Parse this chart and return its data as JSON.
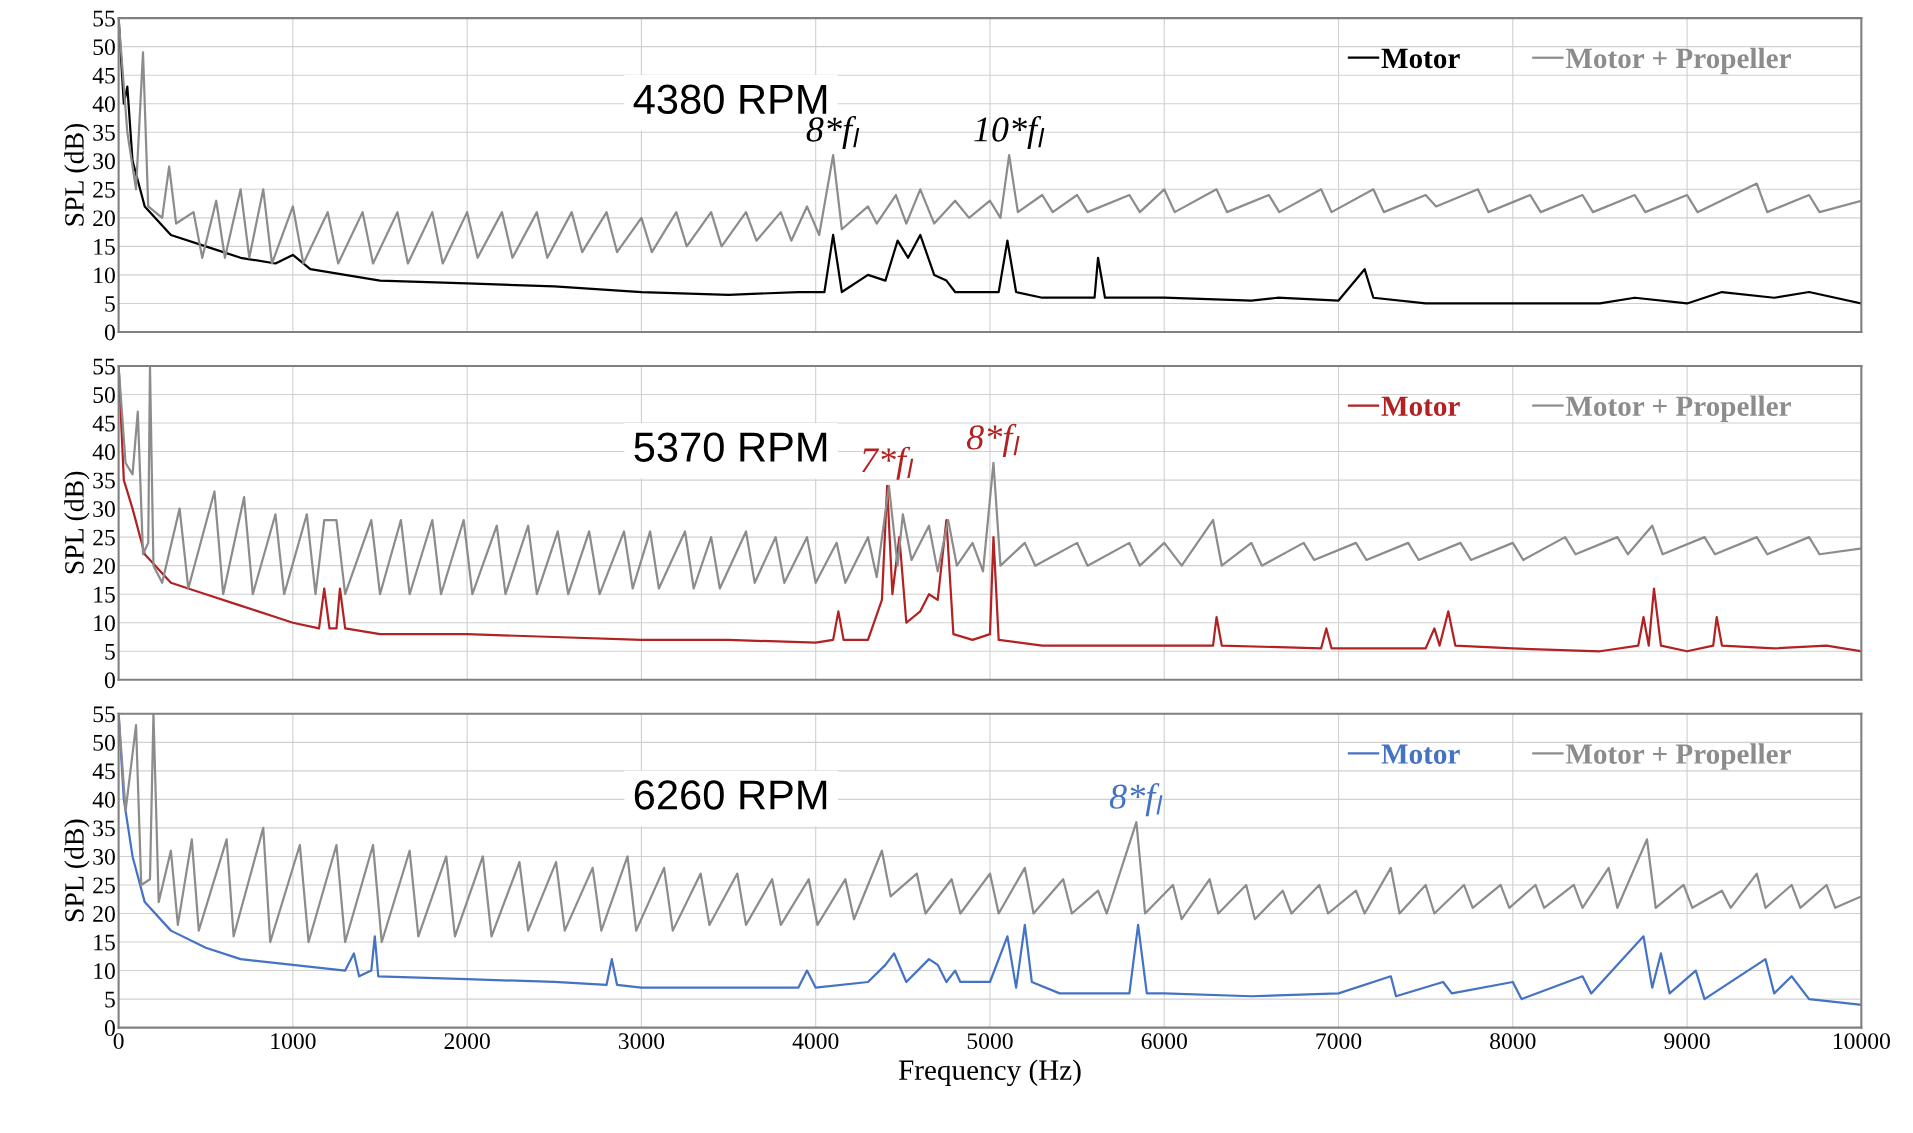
{
  "chart_data": [
    {
      "type": "line",
      "ylabel": "SPL (dB)",
      "xlim": [
        0,
        10000
      ],
      "ylim": [
        0,
        55
      ],
      "xticks": [
        0,
        1000,
        2000,
        3000,
        4000,
        5000,
        6000,
        7000,
        8000,
        9000,
        10000
      ],
      "yticks": [
        0,
        5,
        10,
        15,
        20,
        25,
        30,
        35,
        40,
        45,
        50,
        55
      ],
      "grid": true,
      "legend": "top right",
      "tick_labels": "y",
      "annotations": [
        "4380 RPM",
        {
          "text": "8*f$_{l}$",
          "x": 4100,
          "y": 31
        },
        {
          "text": "10*f$_{l}$",
          "x": 5110,
          "y": 31
        }
      ],
      "series": [
        {
          "name": "Motor",
          "color": "#000000",
          "x": [
            0,
            30,
            50,
            80,
            150,
            300,
            500,
            700,
            900,
            1000,
            1100,
            1500,
            2000,
            2500,
            3000,
            3500,
            3900,
            4050,
            4100,
            4150,
            4300,
            4400,
            4470,
            4530,
            4600,
            4680,
            4750,
            4800,
            5050,
            5100,
            5150,
            5300,
            5600,
            5620,
            5660,
            6000,
            6500,
            6650,
            7000,
            7150,
            7200,
            7500,
            8000,
            8500,
            8700,
            9000,
            9200,
            9500,
            9700,
            10000
          ],
          "values": [
            55,
            40,
            43,
            30,
            22,
            17,
            15,
            13,
            12,
            13.5,
            11,
            9,
            8.5,
            8,
            7,
            6.5,
            7,
            7,
            17,
            7,
            10,
            9,
            16,
            13,
            17,
            10,
            9,
            7,
            7,
            16,
            7,
            6,
            6,
            13,
            6,
            6,
            5.5,
            6,
            5.5,
            11,
            6,
            5,
            5,
            5,
            6,
            5,
            7,
            6,
            7,
            5
          ]
        },
        {
          "name": "Motor + Propeller",
          "color": "#8c8c8c",
          "x": [
            0,
            50,
            100,
            140,
            170,
            250,
            290,
            330,
            430,
            480,
            560,
            610,
            700,
            750,
            830,
            880,
            1000,
            1060,
            1200,
            1260,
            1400,
            1460,
            1600,
            1660,
            1800,
            1860,
            2000,
            2060,
            2200,
            2260,
            2400,
            2460,
            2600,
            2660,
            2800,
            2860,
            3000,
            3060,
            3200,
            3260,
            3400,
            3460,
            3600,
            3660,
            3800,
            3860,
            3950,
            4020,
            4100,
            4150,
            4300,
            4350,
            4460,
            4520,
            4600,
            4680,
            4800,
            4880,
            5000,
            5060,
            5110,
            5160,
            5300,
            5360,
            5500,
            5560,
            5800,
            5860,
            6000,
            6060,
            6300,
            6360,
            6600,
            6660,
            6900,
            6960,
            7200,
            7260,
            7500,
            7560,
            7800,
            7860,
            8100,
            8160,
            8400,
            8460,
            8700,
            8760,
            9000,
            9060,
            9400,
            9460,
            9700,
            9760,
            10000
          ],
          "values": [
            55,
            35,
            25,
            49,
            22,
            20,
            29,
            19,
            21,
            13,
            23,
            13,
            25,
            13,
            25,
            12,
            22,
            12,
            21,
            12,
            21,
            12,
            21,
            12,
            21,
            12,
            21,
            13,
            21,
            13,
            21,
            13,
            21,
            14,
            21,
            14,
            20,
            14,
            21,
            15,
            21,
            15,
            21,
            16,
            21,
            16,
            22,
            17,
            31,
            18,
            22,
            19,
            24,
            19,
            25,
            19,
            23,
            20,
            23,
            20,
            31,
            21,
            24,
            21,
            24,
            21,
            24,
            21,
            25,
            21,
            25,
            21,
            24,
            21,
            25,
            21,
            25,
            21,
            24,
            22,
            25,
            21,
            24,
            21,
            24,
            21,
            24,
            21,
            24,
            21,
            26,
            21,
            24,
            21,
            23
          ]
        }
      ]
    },
    {
      "type": "line",
      "ylabel": "SPL (dB)",
      "xlim": [
        0,
        10000
      ],
      "ylim": [
        0,
        55
      ],
      "xticks": [
        0,
        1000,
        2000,
        3000,
        4000,
        5000,
        6000,
        7000,
        8000,
        9000,
        10000
      ],
      "yticks": [
        0,
        5,
        10,
        15,
        20,
        25,
        30,
        35,
        40,
        45,
        50,
        55
      ],
      "grid": true,
      "legend": "top right",
      "tick_labels": "y",
      "annotations": [
        "5370 RPM",
        {
          "text": "7*f$_{l}$",
          "x": 4410,
          "y": 34
        },
        {
          "text": "8*f$_{l}$",
          "x": 5020,
          "y": 38
        }
      ],
      "series": [
        {
          "name": "Motor",
          "color": "#b22222",
          "x": [
            0,
            30,
            80,
            150,
            300,
            500,
            700,
            900,
            1000,
            1150,
            1180,
            1210,
            1250,
            1270,
            1300,
            1500,
            2000,
            2500,
            3000,
            3500,
            4000,
            4100,
            4130,
            4160,
            4300,
            4380,
            4410,
            4440,
            4480,
            4520,
            4600,
            4650,
            4700,
            4750,
            4790,
            4900,
            5000,
            5020,
            5050,
            5300,
            6000,
            6280,
            6300,
            6330,
            6900,
            6930,
            6960,
            7500,
            7550,
            7580,
            7630,
            7670,
            8000,
            8500,
            8720,
            8750,
            8780,
            8810,
            8850,
            9000,
            9150,
            9170,
            9200,
            9500,
            9800,
            10000
          ],
          "values": [
            55,
            35,
            30,
            22,
            17,
            15,
            13,
            11,
            10,
            9,
            16,
            9,
            9,
            16,
            9,
            8,
            8,
            7.5,
            7,
            7,
            6.5,
            7,
            12,
            7,
            7,
            14,
            34,
            15,
            25,
            10,
            12,
            15,
            14,
            28,
            8,
            7,
            8,
            25,
            7,
            6,
            6,
            6,
            11,
            6,
            5.5,
            9,
            5.5,
            5.5,
            9,
            6,
            12,
            6,
            5.5,
            5,
            6,
            11,
            6,
            16,
            6,
            5,
            6,
            11,
            6,
            5.5,
            6,
            5
          ]
        },
        {
          "name": "Motor + Propeller",
          "color": "#8c8c8c",
          "x": [
            0,
            40,
            80,
            110,
            140,
            170,
            180,
            200,
            250,
            350,
            400,
            550,
            600,
            720,
            770,
            900,
            950,
            1080,
            1130,
            1180,
            1250,
            1300,
            1450,
            1500,
            1620,
            1670,
            1800,
            1850,
            1980,
            2030,
            2170,
            2220,
            2350,
            2400,
            2520,
            2580,
            2700,
            2760,
            2900,
            2950,
            3050,
            3100,
            3250,
            3300,
            3400,
            3450,
            3600,
            3650,
            3770,
            3820,
            3950,
            4000,
            4120,
            4170,
            4300,
            4350,
            4420,
            4470,
            4500,
            4550,
            4650,
            4700,
            4760,
            4810,
            4900,
            4960,
            5020,
            5060,
            5200,
            5260,
            5500,
            5560,
            5800,
            5860,
            6000,
            6100,
            6280,
            6330,
            6500,
            6560,
            6800,
            6860,
            7100,
            7160,
            7400,
            7460,
            7700,
            7760,
            8000,
            8060,
            8300,
            8360,
            8600,
            8660,
            8800,
            8860,
            9100,
            9160,
            9400,
            9460,
            9700,
            9760,
            10000
          ],
          "values": [
            55,
            38,
            36,
            47,
            22,
            24,
            55,
            20,
            17,
            30,
            16,
            33,
            15,
            32,
            15,
            29,
            15,
            29,
            15,
            28,
            28,
            15,
            28,
            15,
            28,
            15,
            28,
            15,
            28,
            15,
            27,
            15,
            27,
            15,
            26,
            15,
            26,
            15,
            26,
            16,
            26,
            16,
            26,
            16,
            25,
            16,
            26,
            17,
            25,
            17,
            25,
            17,
            24,
            17,
            25,
            18,
            34,
            20,
            29,
            21,
            27,
            19,
            28,
            20,
            24,
            19,
            38,
            20,
            24,
            20,
            24,
            20,
            24,
            20,
            24,
            20,
            28,
            20,
            24,
            20,
            24,
            21,
            24,
            21,
            24,
            21,
            24,
            21,
            24,
            21,
            25,
            22,
            25,
            22,
            27,
            22,
            25,
            22,
            25,
            22,
            25,
            22,
            23
          ]
        }
      ]
    },
    {
      "type": "line",
      "xlabel": "Frequency (Hz)",
      "ylabel": "SPL (dB)",
      "xlim": [
        0,
        10000
      ],
      "ylim": [
        0,
        55
      ],
      "xticks": [
        0,
        1000,
        2000,
        3000,
        4000,
        5000,
        6000,
        7000,
        8000,
        9000,
        10000
      ],
      "yticks": [
        0,
        5,
        10,
        15,
        20,
        25,
        30,
        35,
        40,
        45,
        50,
        55
      ],
      "grid": true,
      "legend": "top right",
      "annotations": [
        "6260 RPM",
        {
          "text": "8*f$_{l}$",
          "x": 5840,
          "y": 36
        }
      ],
      "series": [
        {
          "name": "Motor",
          "color": "#4472c4",
          "x": [
            0,
            30,
            80,
            150,
            300,
            500,
            700,
            1000,
            1300,
            1350,
            1380,
            1450,
            1470,
            1490,
            2000,
            2500,
            2800,
            2830,
            2860,
            3000,
            3500,
            3700,
            3900,
            3950,
            4000,
            4300,
            4400,
            4450,
            4520,
            4650,
            4700,
            4750,
            4800,
            4830,
            4900,
            5000,
            5100,
            5150,
            5200,
            5240,
            5400,
            5800,
            5850,
            5900,
            6000,
            6500,
            7000,
            7300,
            7330,
            7600,
            7650,
            8000,
            8050,
            8400,
            8450,
            8750,
            8800,
            8850,
            8900,
            9050,
            9100,
            9450,
            9500,
            9600,
            9700,
            10000
          ],
          "values": [
            55,
            40,
            30,
            22,
            17,
            14,
            12,
            11,
            10,
            13,
            9,
            10,
            16,
            9,
            8.5,
            8,
            7.5,
            12,
            7.5,
            7,
            7,
            7,
            7,
            10,
            7,
            8,
            11,
            13,
            8,
            12,
            11,
            8,
            10,
            8,
            8,
            8,
            16,
            7,
            18,
            8,
            6,
            6,
            18,
            6,
            6,
            5.5,
            6,
            9,
            5.5,
            8,
            6,
            8,
            5,
            9,
            6,
            16,
            7,
            13,
            6,
            10,
            5,
            12,
            6,
            9,
            5,
            4
          ]
        },
        {
          "name": "Motor + Propeller",
          "color": "#8c8c8c",
          "x": [
            0,
            40,
            100,
            130,
            180,
            200,
            230,
            300,
            340,
            420,
            460,
            620,
            660,
            830,
            870,
            1040,
            1090,
            1250,
            1300,
            1460,
            1510,
            1670,
            1720,
            1880,
            1930,
            2090,
            2140,
            2300,
            2350,
            2510,
            2560,
            2720,
            2770,
            2920,
            2970,
            3130,
            3180,
            3340,
            3390,
            3550,
            3600,
            3750,
            3800,
            3960,
            4010,
            4170,
            4220,
            4380,
            4430,
            4580,
            4630,
            4780,
            4830,
            5000,
            5050,
            5200,
            5250,
            5420,
            5470,
            5620,
            5670,
            5840,
            5890,
            6050,
            6100,
            6260,
            6310,
            6470,
            6520,
            6680,
            6730,
            6890,
            6940,
            7100,
            7150,
            7300,
            7350,
            7500,
            7550,
            7720,
            7770,
            7930,
            7980,
            8130,
            8180,
            8350,
            8400,
            8550,
            8600,
            8770,
            8820,
            8980,
            9030,
            9200,
            9250,
            9400,
            9450,
            9600,
            9650,
            9800,
            9850,
            10000
          ],
          "values": [
            55,
            38,
            53,
            25,
            26,
            55,
            22,
            31,
            18,
            33,
            17,
            33,
            16,
            35,
            15,
            32,
            15,
            32,
            15,
            32,
            15,
            31,
            16,
            30,
            16,
            30,
            16,
            29,
            17,
            29,
            17,
            28,
            17,
            30,
            17,
            28,
            17,
            27,
            18,
            27,
            18,
            26,
            18,
            26,
            18,
            26,
            19,
            31,
            23,
            27,
            20,
            26,
            20,
            27,
            20,
            28,
            20,
            26,
            20,
            24,
            20,
            36,
            20,
            25,
            19,
            26,
            20,
            25,
            19,
            24,
            20,
            25,
            20,
            24,
            20,
            28,
            20,
            25,
            20,
            25,
            21,
            25,
            21,
            25,
            21,
            25,
            21,
            28,
            21,
            33,
            21,
            25,
            21,
            24,
            21,
            27,
            21,
            25,
            21,
            25,
            21,
            23
          ]
        }
      ]
    }
  ]
}
